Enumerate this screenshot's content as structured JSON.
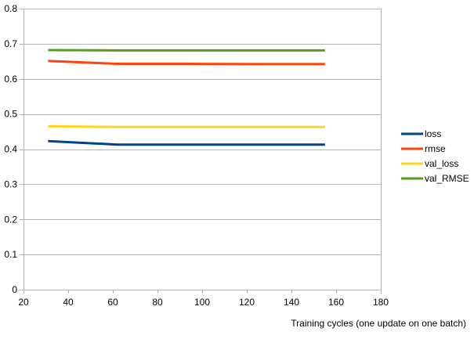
{
  "chart_data": {
    "type": "line",
    "title": "",
    "xlabel": "Training cycles (one update on one batch)",
    "ylabel": "",
    "xlim": [
      20,
      180
    ],
    "ylim": [
      0,
      0.8
    ],
    "x_ticks": [
      20,
      40,
      60,
      80,
      100,
      120,
      140,
      160,
      180
    ],
    "y_ticks": [
      0,
      0.1,
      0.2,
      0.3,
      0.4,
      0.5,
      0.6,
      0.7,
      0.8
    ],
    "x_tick_labels": [
      "20",
      "40",
      "60",
      "80",
      "100",
      "120",
      "140",
      "160",
      "180"
    ],
    "y_tick_labels": [
      "0",
      "0.1",
      "0.2",
      "0.3",
      "0.4",
      "0.5",
      "0.6",
      "0.7",
      "0.8"
    ],
    "grid": "horizontal",
    "legend_position": "right",
    "x": [
      31,
      62,
      93,
      124,
      155
    ],
    "series": [
      {
        "name": "loss",
        "color": "#004586",
        "values": [
          0.423,
          0.413,
          0.413,
          0.413,
          0.413
        ]
      },
      {
        "name": "rmse",
        "color": "#ff420e",
        "values": [
          0.651,
          0.643,
          0.643,
          0.642,
          0.642
        ]
      },
      {
        "name": "val_loss",
        "color": "#ffd320",
        "values": [
          0.465,
          0.463,
          0.463,
          0.463,
          0.463
        ]
      },
      {
        "name": "val_RMSE",
        "color": "#579d1c",
        "values": [
          0.682,
          0.681,
          0.681,
          0.681,
          0.681
        ]
      }
    ]
  }
}
